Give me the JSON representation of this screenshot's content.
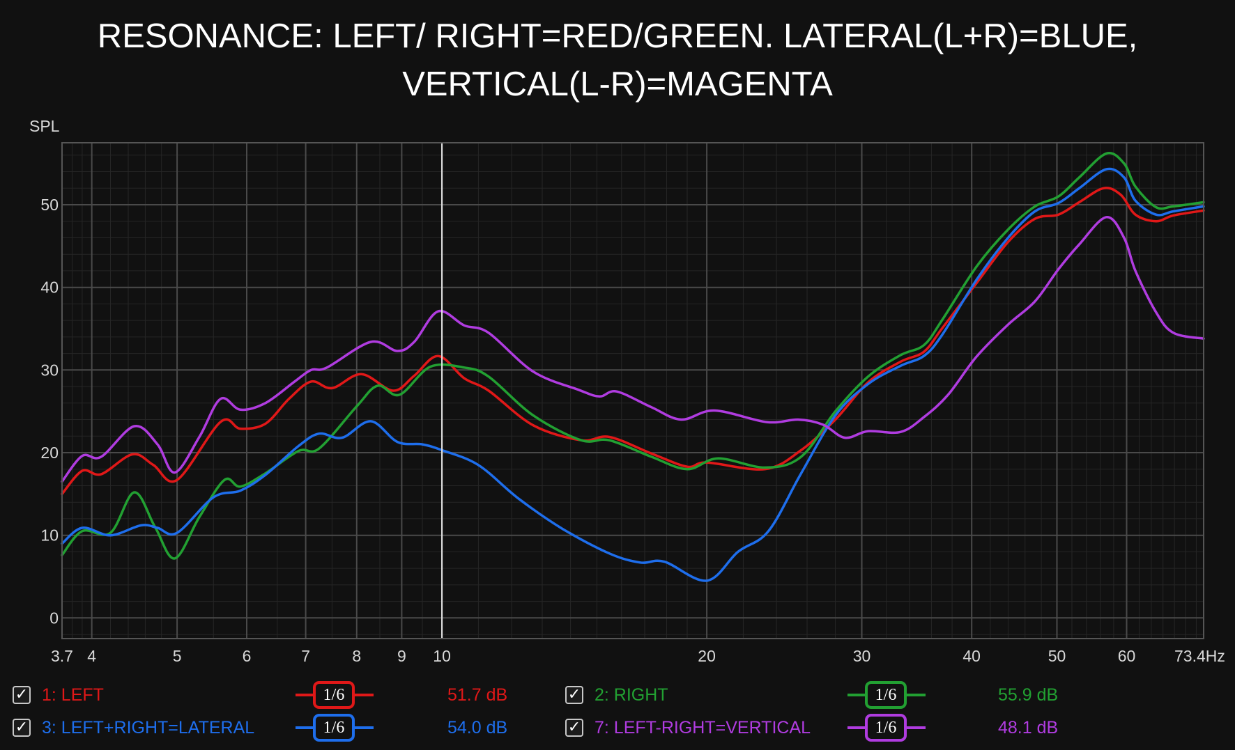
{
  "title": {
    "line1": "RESONANCE: LEFT/ RIGHT=RED/GREEN. LATERAL(L+R)=BLUE,",
    "line2": "VERTICAL(L-R)=MAGENTA"
  },
  "chart_data": {
    "type": "line",
    "title": "RESONANCE: LEFT/ RIGHT=RED/GREEN. LATERAL(L+R)=BLUE, VERTICAL(L-R)=MAGENTA",
    "xlabel": "Hz",
    "ylabel": "SPL",
    "x_scale": "log",
    "xlim": [
      3.7,
      73.4
    ],
    "ylim": [
      -2.5,
      57.5
    ],
    "grid": true,
    "cursor_x": 10,
    "x_ticks": [
      {
        "value": 3.7,
        "label": "3.7"
      },
      {
        "value": 4,
        "label": "4"
      },
      {
        "value": 5,
        "label": "5"
      },
      {
        "value": 6,
        "label": "6"
      },
      {
        "value": 7,
        "label": "7"
      },
      {
        "value": 8,
        "label": "8"
      },
      {
        "value": 9,
        "label": "9"
      },
      {
        "value": 10,
        "label": "10"
      },
      {
        "value": 20,
        "label": "20"
      },
      {
        "value": 30,
        "label": "30"
      },
      {
        "value": 40,
        "label": "40"
      },
      {
        "value": 50,
        "label": "50"
      },
      {
        "value": 60,
        "label": "60"
      },
      {
        "value": 73.4,
        "label": "73.4Hz"
      }
    ],
    "y_ticks": [
      0,
      10,
      20,
      30,
      40,
      50
    ],
    "series": [
      {
        "name": "1: LEFT",
        "color": "#e01818",
        "points": [
          [
            3.7,
            15.0
          ],
          [
            3.9,
            17.8
          ],
          [
            4.1,
            17.4
          ],
          [
            4.45,
            19.8
          ],
          [
            4.7,
            18.5
          ],
          [
            5.0,
            16.7
          ],
          [
            5.6,
            23.7
          ],
          [
            5.9,
            22.9
          ],
          [
            6.3,
            23.5
          ],
          [
            6.7,
            26.5
          ],
          [
            7.1,
            28.6
          ],
          [
            7.5,
            27.8
          ],
          [
            8.1,
            29.5
          ],
          [
            8.8,
            27.5
          ],
          [
            9.3,
            29.3
          ],
          [
            9.9,
            31.7
          ],
          [
            10.6,
            29.0
          ],
          [
            11.3,
            27.5
          ],
          [
            12.7,
            23.3
          ],
          [
            14.4,
            21.5
          ],
          [
            15.5,
            21.9
          ],
          [
            17.3,
            19.9
          ],
          [
            19.0,
            18.3
          ],
          [
            20.0,
            18.8
          ],
          [
            23.3,
            18.0
          ],
          [
            25.6,
            20.3
          ],
          [
            28.0,
            24.0
          ],
          [
            30.5,
            28.5
          ],
          [
            33.2,
            31.0
          ],
          [
            35.3,
            32.2
          ],
          [
            37.0,
            35.0
          ],
          [
            40.5,
            40.5
          ],
          [
            44.0,
            45.5
          ],
          [
            47.2,
            48.3
          ],
          [
            50.2,
            48.8
          ],
          [
            53.0,
            50.3
          ],
          [
            56.5,
            52.0
          ],
          [
            59.1,
            51.2
          ],
          [
            61.4,
            48.8
          ],
          [
            64.8,
            48.0
          ],
          [
            67.8,
            48.7
          ],
          [
            73.4,
            49.3
          ]
        ]
      },
      {
        "name": "2: RIGHT",
        "color": "#22a032",
        "points": [
          [
            3.7,
            7.6
          ],
          [
            3.9,
            10.5
          ],
          [
            4.2,
            10.3
          ],
          [
            4.47,
            15.2
          ],
          [
            4.72,
            11.0
          ],
          [
            4.97,
            7.2
          ],
          [
            5.3,
            12.2
          ],
          [
            5.66,
            16.7
          ],
          [
            5.9,
            15.9
          ],
          [
            6.3,
            17.5
          ],
          [
            6.87,
            20.2
          ],
          [
            7.25,
            20.5
          ],
          [
            8.0,
            25.6
          ],
          [
            8.45,
            28.1
          ],
          [
            8.95,
            27.0
          ],
          [
            9.7,
            30.4
          ],
          [
            10.6,
            30.3
          ],
          [
            11.3,
            29.2
          ],
          [
            12.7,
            24.5
          ],
          [
            14.4,
            21.5
          ],
          [
            15.5,
            21.5
          ],
          [
            17.3,
            19.5
          ],
          [
            19.0,
            18.0
          ],
          [
            20.6,
            19.3
          ],
          [
            23.3,
            18.2
          ],
          [
            25.6,
            19.5
          ],
          [
            28.0,
            25.0
          ],
          [
            30.5,
            29.2
          ],
          [
            33.2,
            31.8
          ],
          [
            35.3,
            33.0
          ],
          [
            37.0,
            36.0
          ],
          [
            40.5,
            42.5
          ],
          [
            44.0,
            47.0
          ],
          [
            47.2,
            49.8
          ],
          [
            50.2,
            51.0
          ],
          [
            53.0,
            53.3
          ],
          [
            56.9,
            56.2
          ],
          [
            59.6,
            55.0
          ],
          [
            61.4,
            52.2
          ],
          [
            64.8,
            49.7
          ],
          [
            67.8,
            49.8
          ],
          [
            73.4,
            50.3
          ]
        ]
      },
      {
        "name": "3: LEFT+RIGHT=LATERAL",
        "color": "#1e6eec",
        "points": [
          [
            3.7,
            9.0
          ],
          [
            3.9,
            10.9
          ],
          [
            4.2,
            10.0
          ],
          [
            4.55,
            11.2
          ],
          [
            4.75,
            10.9
          ],
          [
            5.0,
            10.3
          ],
          [
            5.5,
            14.6
          ],
          [
            5.9,
            15.4
          ],
          [
            6.3,
            17.3
          ],
          [
            6.87,
            20.8
          ],
          [
            7.25,
            22.3
          ],
          [
            7.7,
            21.8
          ],
          [
            8.3,
            23.8
          ],
          [
            8.9,
            21.3
          ],
          [
            9.5,
            21.0
          ],
          [
            10.0,
            20.3
          ],
          [
            11.0,
            18.5
          ],
          [
            12.2,
            14.5
          ],
          [
            13.7,
            10.8
          ],
          [
            15.5,
            7.8
          ],
          [
            16.8,
            6.7
          ],
          [
            17.9,
            6.8
          ],
          [
            20.0,
            4.5
          ],
          [
            21.7,
            8.0
          ],
          [
            23.5,
            10.5
          ],
          [
            25.6,
            17.5
          ],
          [
            28.0,
            24.5
          ],
          [
            30.5,
            28.3
          ],
          [
            33.2,
            30.5
          ],
          [
            35.3,
            31.7
          ],
          [
            37.0,
            34.2
          ],
          [
            40.5,
            40.9
          ],
          [
            44.0,
            46.0
          ],
          [
            47.2,
            49.2
          ],
          [
            50.2,
            50.2
          ],
          [
            53.0,
            52.0
          ],
          [
            56.9,
            54.3
          ],
          [
            59.6,
            53.3
          ],
          [
            61.4,
            50.5
          ],
          [
            64.8,
            48.8
          ],
          [
            67.8,
            49.2
          ],
          [
            73.4,
            49.8
          ]
        ]
      },
      {
        "name": "7: LEFT-RIGHT=VERTICAL",
        "color": "#b03ce0",
        "points": [
          [
            3.7,
            16.5
          ],
          [
            3.9,
            19.6
          ],
          [
            4.1,
            19.5
          ],
          [
            4.47,
            23.2
          ],
          [
            4.75,
            21.0
          ],
          [
            4.97,
            17.6
          ],
          [
            5.3,
            21.9
          ],
          [
            5.6,
            26.5
          ],
          [
            5.9,
            25.2
          ],
          [
            6.3,
            26.0
          ],
          [
            6.8,
            28.6
          ],
          [
            7.1,
            30.0
          ],
          [
            7.4,
            30.3
          ],
          [
            8.3,
            33.4
          ],
          [
            8.9,
            32.3
          ],
          [
            9.3,
            33.4
          ],
          [
            9.9,
            37.1
          ],
          [
            10.6,
            35.4
          ],
          [
            11.3,
            34.5
          ],
          [
            12.7,
            29.8
          ],
          [
            14.3,
            27.6
          ],
          [
            15.1,
            26.8
          ],
          [
            15.8,
            27.4
          ],
          [
            17.3,
            25.5
          ],
          [
            18.7,
            24.0
          ],
          [
            20.4,
            25.1
          ],
          [
            23.4,
            23.7
          ],
          [
            25.4,
            24.0
          ],
          [
            27.1,
            23.4
          ],
          [
            28.7,
            21.8
          ],
          [
            30.5,
            22.6
          ],
          [
            33.2,
            22.5
          ],
          [
            35.3,
            24.3
          ],
          [
            37.6,
            27.0
          ],
          [
            40.5,
            31.6
          ],
          [
            44.0,
            35.5
          ],
          [
            47.2,
            38.3
          ],
          [
            50.2,
            42.2
          ],
          [
            53.0,
            45.2
          ],
          [
            56.9,
            48.5
          ],
          [
            59.6,
            46.0
          ],
          [
            61.4,
            42.0
          ],
          [
            64.8,
            37.0
          ],
          [
            67.8,
            34.5
          ],
          [
            73.4,
            33.8
          ]
        ]
      }
    ]
  },
  "legend": [
    {
      "checked": "✓",
      "label": "1: LEFT",
      "smoothing": "1/6",
      "value": "51.7 dB",
      "color": "#e01818"
    },
    {
      "checked": "✓",
      "label": "2: RIGHT",
      "smoothing": "1/6",
      "value": "55.9 dB",
      "color": "#22a032"
    },
    {
      "checked": "✓",
      "label": "3: LEFT+RIGHT=LATERAL",
      "smoothing": "1/6",
      "value": "54.0 dB",
      "color": "#1e6eec"
    },
    {
      "checked": "✓",
      "label": "7: LEFT-RIGHT=VERTICAL",
      "smoothing": "1/6",
      "value": "48.1 dB",
      "color": "#b03ce0"
    }
  ]
}
